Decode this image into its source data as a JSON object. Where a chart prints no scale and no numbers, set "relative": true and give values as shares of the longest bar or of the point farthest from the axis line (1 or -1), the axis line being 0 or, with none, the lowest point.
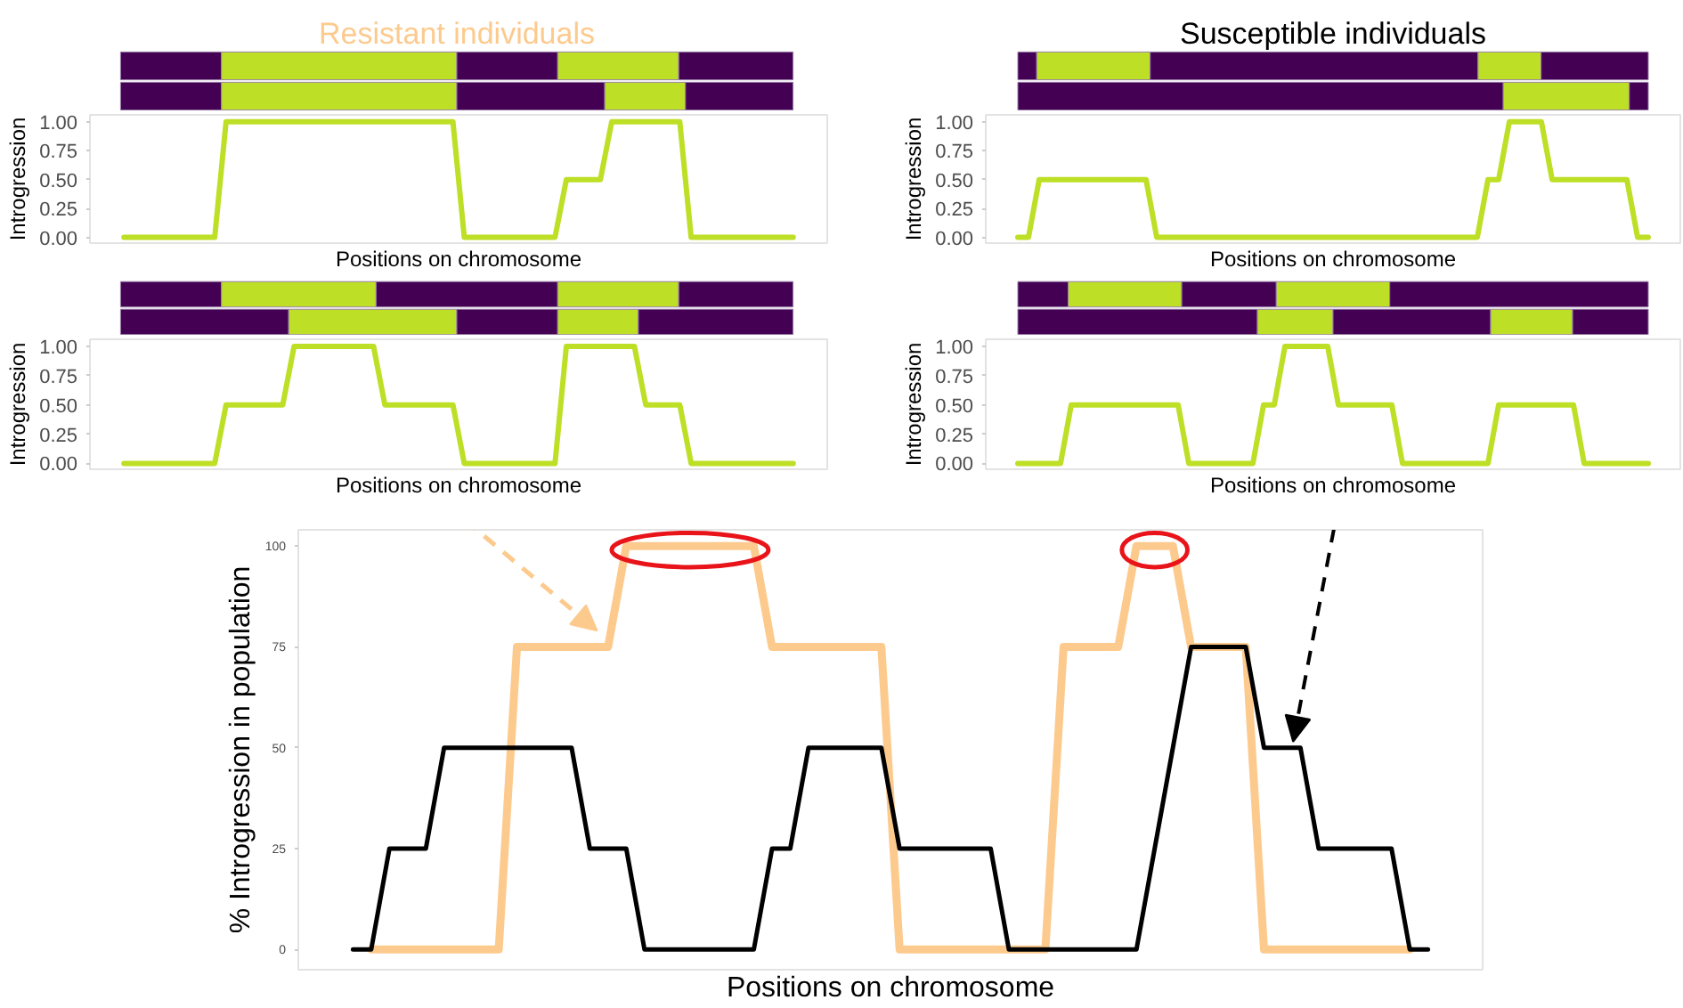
{
  "chart_data": [
    {
      "type": "bar",
      "orientation": "horizontal",
      "stacked": true,
      "relative": true,
      "tick_labels": false,
      "title": "Resistant individuals",
      "categories": [
        null,
        null
      ],
      "series": [
        {
          "color": "#440154",
          "values": [
            0.15,
            0.15
          ]
        },
        {
          "color": "#bddf26",
          "values": [
            0.35,
            0.35
          ]
        },
        {
          "color": "#440154",
          "values": [
            0.15,
            0.22
          ]
        },
        {
          "color": "#bddf26",
          "values": [
            0.18,
            0.12
          ]
        },
        {
          "color": "#440154",
          "values": [
            0.17,
            0.16
          ]
        }
      ]
    },
    {
      "type": "bar",
      "orientation": "horizontal",
      "stacked": true,
      "relative": true,
      "tick_labels": false,
      "title": "Susceptible individuals",
      "categories": [
        null,
        null
      ],
      "series": [
        {
          "color": "#440154",
          "values": [
            0.03,
            0.77
          ]
        },
        {
          "color": "#bddf26",
          "values": [
            0.18,
            0.2
          ]
        },
        {
          "color": "#440154",
          "values": [
            0.52,
            0.03
          ]
        },
        {
          "color": "#bddf26",
          "values": [
            0.1,
            0
          ]
        },
        {
          "color": "#440154",
          "values": [
            0.17,
            0
          ]
        }
      ]
    },
    {
      "type": "line",
      "xlabel": "Positions on chromosome",
      "ylabel": "Introgression",
      "tick_labels": "y",
      "ylim": [
        -0.05,
        1.06
      ],
      "yticks": [
        {
          "value": 0,
          "label": "0.00"
        },
        {
          "value": 0.25,
          "label": "0.25"
        },
        {
          "value": 0.5,
          "label": "0.50"
        },
        {
          "value": 0.75,
          "label": "0.75"
        },
        {
          "value": 1,
          "label": "1.00"
        }
      ],
      "categories": [
        null,
        null,
        null,
        null,
        null,
        null,
        null,
        null,
        null,
        null,
        null,
        null,
        null,
        null,
        null,
        null,
        null,
        null,
        null,
        null,
        null,
        null,
        null,
        null,
        null,
        null,
        null,
        null,
        null,
        null,
        null,
        null,
        null,
        null,
        null,
        null,
        null,
        null,
        null,
        null,
        null,
        null,
        null,
        null,
        null,
        null,
        null,
        null,
        null,
        null,
        null,
        null,
        null,
        null,
        null,
        null,
        null,
        null,
        null,
        null
      ],
      "series": [
        {
          "color": "#bddf26",
          "values": [
            0,
            0,
            0,
            0,
            0,
            0,
            0,
            0,
            0,
            1,
            1,
            1,
            1,
            1,
            1,
            1,
            1,
            1,
            1,
            1,
            1,
            1,
            1,
            1,
            1,
            1,
            1,
            1,
            1,
            1,
            0,
            0,
            0,
            0,
            0,
            0,
            0,
            0,
            0,
            0.5,
            0.5,
            0.5,
            0.5,
            1,
            1,
            1,
            1,
            1,
            1,
            1,
            0,
            0,
            0,
            0,
            0,
            0,
            0,
            0,
            0,
            0
          ]
        }
      ]
    },
    {
      "type": "line",
      "xlabel": "Positions on chromosome",
      "ylabel": "Introgression",
      "tick_labels": "y",
      "ylim": [
        -0.05,
        1.06
      ],
      "yticks": [
        {
          "value": 0,
          "label": "0.00"
        },
        {
          "value": 0.25,
          "label": "0.25"
        },
        {
          "value": 0.5,
          "label": "0.50"
        },
        {
          "value": 0.75,
          "label": "0.75"
        },
        {
          "value": 1,
          "label": "1.00"
        }
      ],
      "categories": [
        null,
        null,
        null,
        null,
        null,
        null,
        null,
        null,
        null,
        null,
        null,
        null,
        null,
        null,
        null,
        null,
        null,
        null,
        null,
        null,
        null,
        null,
        null,
        null,
        null,
        null,
        null,
        null,
        null,
        null,
        null,
        null,
        null,
        null,
        null,
        null,
        null,
        null,
        null,
        null,
        null,
        null,
        null,
        null,
        null,
        null,
        null,
        null,
        null,
        null,
        null,
        null,
        null,
        null,
        null,
        null,
        null,
        null,
        null,
        null
      ],
      "series": [
        {
          "color": "#bddf26",
          "values": [
            0,
            0,
            0.5,
            0.5,
            0.5,
            0.5,
            0.5,
            0.5,
            0.5,
            0.5,
            0.5,
            0.5,
            0.5,
            0,
            0,
            0,
            0,
            0,
            0,
            0,
            0,
            0,
            0,
            0,
            0,
            0,
            0,
            0,
            0,
            0,
            0,
            0,
            0,
            0,
            0,
            0,
            0,
            0,
            0,
            0,
            0,
            0,
            0,
            0,
            0.5,
            0.5,
            1,
            1,
            1,
            1,
            0.5,
            0.5,
            0.5,
            0.5,
            0.5,
            0.5,
            0.5,
            0.5,
            0,
            0
          ]
        }
      ]
    },
    {
      "type": "bar",
      "orientation": "horizontal",
      "stacked": true,
      "relative": true,
      "tick_labels": false,
      "categories": [
        null,
        null
      ],
      "series": [
        {
          "color": "#440154",
          "values": [
            0.15,
            0.25
          ]
        },
        {
          "color": "#bddf26",
          "values": [
            0.23,
            0.25
          ]
        },
        {
          "color": "#440154",
          "values": [
            0.27,
            0.15
          ]
        },
        {
          "color": "#bddf26",
          "values": [
            0.18,
            0.12
          ]
        },
        {
          "color": "#440154",
          "values": [
            0.17,
            0.23
          ]
        }
      ]
    },
    {
      "type": "bar",
      "orientation": "horizontal",
      "stacked": true,
      "relative": true,
      "tick_labels": false,
      "categories": [
        null,
        null
      ],
      "series": [
        {
          "color": "#440154",
          "values": [
            0.08,
            0.38
          ]
        },
        {
          "color": "#bddf26",
          "values": [
            0.18,
            0.12
          ]
        },
        {
          "color": "#440154",
          "values": [
            0.15,
            0.25
          ]
        },
        {
          "color": "#bddf26",
          "values": [
            0.18,
            0.13
          ]
        },
        {
          "color": "#440154",
          "values": [
            0.41,
            0.12
          ]
        }
      ]
    },
    {
      "type": "line",
      "xlabel": "Positions on chromosome",
      "ylabel": "Introgression",
      "tick_labels": "y",
      "ylim": [
        -0.05,
        1.06
      ],
      "yticks": [
        {
          "value": 0,
          "label": "0.00"
        },
        {
          "value": 0.25,
          "label": "0.25"
        },
        {
          "value": 0.5,
          "label": "0.50"
        },
        {
          "value": 0.75,
          "label": "0.75"
        },
        {
          "value": 1,
          "label": "1.00"
        }
      ],
      "categories": [
        null,
        null,
        null,
        null,
        null,
        null,
        null,
        null,
        null,
        null,
        null,
        null,
        null,
        null,
        null,
        null,
        null,
        null,
        null,
        null,
        null,
        null,
        null,
        null,
        null,
        null,
        null,
        null,
        null,
        null,
        null,
        null,
        null,
        null,
        null,
        null,
        null,
        null,
        null,
        null,
        null,
        null,
        null,
        null,
        null,
        null,
        null,
        null,
        null,
        null,
        null,
        null,
        null,
        null,
        null,
        null,
        null,
        null,
        null,
        null
      ],
      "series": [
        {
          "color": "#bddf26",
          "values": [
            0,
            0,
            0,
            0,
            0,
            0,
            0,
            0,
            0,
            0.5,
            0.5,
            0.5,
            0.5,
            0.5,
            0.5,
            1,
            1,
            1,
            1,
            1,
            1,
            1,
            1,
            0.5,
            0.5,
            0.5,
            0.5,
            0.5,
            0.5,
            0.5,
            0,
            0,
            0,
            0,
            0,
            0,
            0,
            0,
            0,
            1,
            1,
            1,
            1,
            1,
            1,
            1,
            0.5,
            0.5,
            0.5,
            0.5,
            0,
            0,
            0,
            0,
            0,
            0,
            0,
            0,
            0,
            0
          ]
        }
      ]
    },
    {
      "type": "line",
      "xlabel": "Positions on chromosome",
      "ylabel": "Introgression",
      "tick_labels": "y",
      "ylim": [
        -0.05,
        1.06
      ],
      "yticks": [
        {
          "value": 0,
          "label": "0.00"
        },
        {
          "value": 0.25,
          "label": "0.25"
        },
        {
          "value": 0.5,
          "label": "0.50"
        },
        {
          "value": 0.75,
          "label": "0.75"
        },
        {
          "value": 1,
          "label": "1.00"
        }
      ],
      "categories": [
        null,
        null,
        null,
        null,
        null,
        null,
        null,
        null,
        null,
        null,
        null,
        null,
        null,
        null,
        null,
        null,
        null,
        null,
        null,
        null,
        null,
        null,
        null,
        null,
        null,
        null,
        null,
        null,
        null,
        null,
        null,
        null,
        null,
        null,
        null,
        null,
        null,
        null,
        null,
        null,
        null,
        null,
        null,
        null,
        null,
        null,
        null,
        null,
        null,
        null,
        null,
        null,
        null,
        null,
        null,
        null,
        null,
        null,
        null,
        null
      ],
      "series": [
        {
          "color": "#bddf26",
          "values": [
            0,
            0,
            0,
            0,
            0,
            0.5,
            0.5,
            0.5,
            0.5,
            0.5,
            0.5,
            0.5,
            0.5,
            0.5,
            0.5,
            0.5,
            0,
            0,
            0,
            0,
            0,
            0,
            0,
            0.5,
            0.5,
            1,
            1,
            1,
            1,
            1,
            0.5,
            0.5,
            0.5,
            0.5,
            0.5,
            0.5,
            0,
            0,
            0,
            0,
            0,
            0,
            0,
            0,
            0,
            0.5,
            0.5,
            0.5,
            0.5,
            0.5,
            0.5,
            0.5,
            0.5,
            0,
            0,
            0,
            0,
            0,
            0,
            0
          ]
        }
      ]
    },
    {
      "type": "line",
      "xlabel": "Positions on chromosome",
      "ylabel": "% Introgression in population",
      "tick_labels": "y",
      "ylim": [
        -5,
        104
      ],
      "yticks": [
        0,
        25,
        50,
        75,
        100
      ],
      "categories": [
        null,
        null,
        null,
        null,
        null,
        null,
        null,
        null,
        null,
        null,
        null,
        null,
        null,
        null,
        null,
        null,
        null,
        null,
        null,
        null,
        null,
        null,
        null,
        null,
        null,
        null,
        null,
        null,
        null,
        null,
        null,
        null,
        null,
        null,
        null,
        null,
        null,
        null,
        null,
        null,
        null,
        null,
        null,
        null,
        null,
        null,
        null,
        null,
        null,
        null,
        null,
        null,
        null,
        null,
        null,
        null,
        null,
        null,
        null,
        null
      ],
      "series": [
        {
          "color": "#fdca8e",
          "values": [
            null,
            0,
            0,
            0,
            0,
            0,
            0,
            0,
            0,
            75,
            75,
            75,
            75,
            75,
            75,
            100,
            100,
            100,
            100,
            100,
            100,
            100,
            100,
            75,
            75,
            75,
            75,
            75,
            75,
            75,
            0,
            0,
            0,
            0,
            0,
            0,
            0,
            0,
            0,
            75,
            75,
            75,
            75,
            100,
            100,
            100,
            75,
            75,
            75,
            75,
            0,
            0,
            0,
            0,
            0,
            0,
            0,
            0,
            0,
            null
          ]
        },
        {
          "color": "#000000",
          "values": [
            0,
            0,
            25,
            25,
            25,
            50,
            50,
            50,
            50,
            50,
            50,
            50,
            50,
            25,
            25,
            25,
            0,
            0,
            0,
            0,
            0,
            0,
            0,
            25,
            25,
            50,
            50,
            50,
            50,
            50,
            25,
            25,
            25,
            25,
            25,
            25,
            0,
            0,
            0,
            0,
            0,
            0,
            0,
            0,
            25,
            50,
            75,
            75,
            75,
            75,
            50,
            50,
            50,
            25,
            25,
            25,
            25,
            25,
            0,
            0
          ]
        }
      ]
    }
  ]
}
